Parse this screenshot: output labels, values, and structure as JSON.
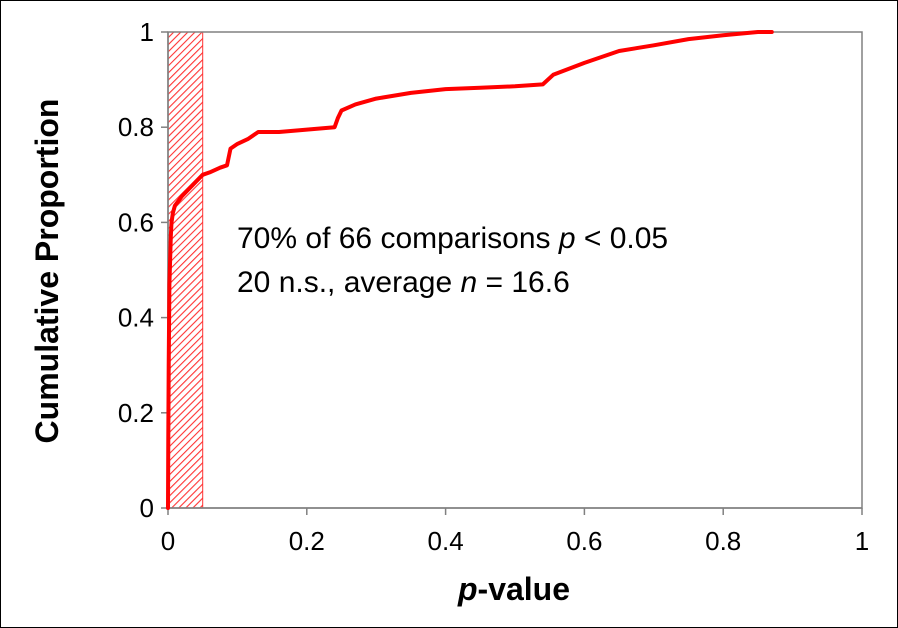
{
  "chart_data": {
    "type": "line",
    "title": "",
    "xlabel_italic": "p",
    "xlabel_rest": "-value",
    "ylabel": "Cumulative Proportion",
    "xlim": [
      0,
      1
    ],
    "ylim": [
      0,
      1
    ],
    "x_ticks": [
      "0",
      "0.2",
      "0.4",
      "0.6",
      "0.8",
      "1"
    ],
    "x_tick_values": [
      0,
      0.2,
      0.4,
      0.6,
      0.8,
      1
    ],
    "y_ticks": [
      "0",
      "0.2",
      "0.4",
      "0.6",
      "0.8",
      "1"
    ],
    "y_tick_values": [
      0,
      0.2,
      0.4,
      0.6,
      0.8,
      1
    ],
    "grid": false,
    "shaded_region": {
      "x_from": 0,
      "x_to": 0.05,
      "pattern": "diagonal hatch",
      "color": "#ff3333"
    },
    "series": [
      {
        "color": "#ff0000",
        "x": [
          0.0,
          0.0005,
          0.001,
          0.002,
          0.003,
          0.004,
          0.005,
          0.007,
          0.01,
          0.015,
          0.02,
          0.03,
          0.04,
          0.05,
          0.06,
          0.075,
          0.085,
          0.09,
          0.1,
          0.115,
          0.13,
          0.16,
          0.2,
          0.24,
          0.245,
          0.25,
          0.27,
          0.3,
          0.35,
          0.4,
          0.45,
          0.5,
          0.54,
          0.555,
          0.6,
          0.65,
          0.7,
          0.75,
          0.8,
          0.85,
          0.87
        ],
        "y": [
          0.0,
          0.15,
          0.3,
          0.47,
          0.52,
          0.57,
          0.6,
          0.62,
          0.635,
          0.645,
          0.655,
          0.67,
          0.685,
          0.7,
          0.705,
          0.715,
          0.72,
          0.755,
          0.765,
          0.775,
          0.79,
          0.79,
          0.795,
          0.8,
          0.82,
          0.835,
          0.848,
          0.86,
          0.872,
          0.88,
          0.883,
          0.886,
          0.89,
          0.91,
          0.935,
          0.96,
          0.972,
          0.985,
          0.993,
          1.0,
          1.0
        ]
      }
    ],
    "annotations": {
      "line1_prefix": "70% of 66 comparisons ",
      "line1_italic": "p",
      "line1_suffix": " < 0.05",
      "line2_prefix": "20 n.s., average ",
      "line2_italic": "n",
      "line2_suffix": " = 16.6"
    }
  }
}
